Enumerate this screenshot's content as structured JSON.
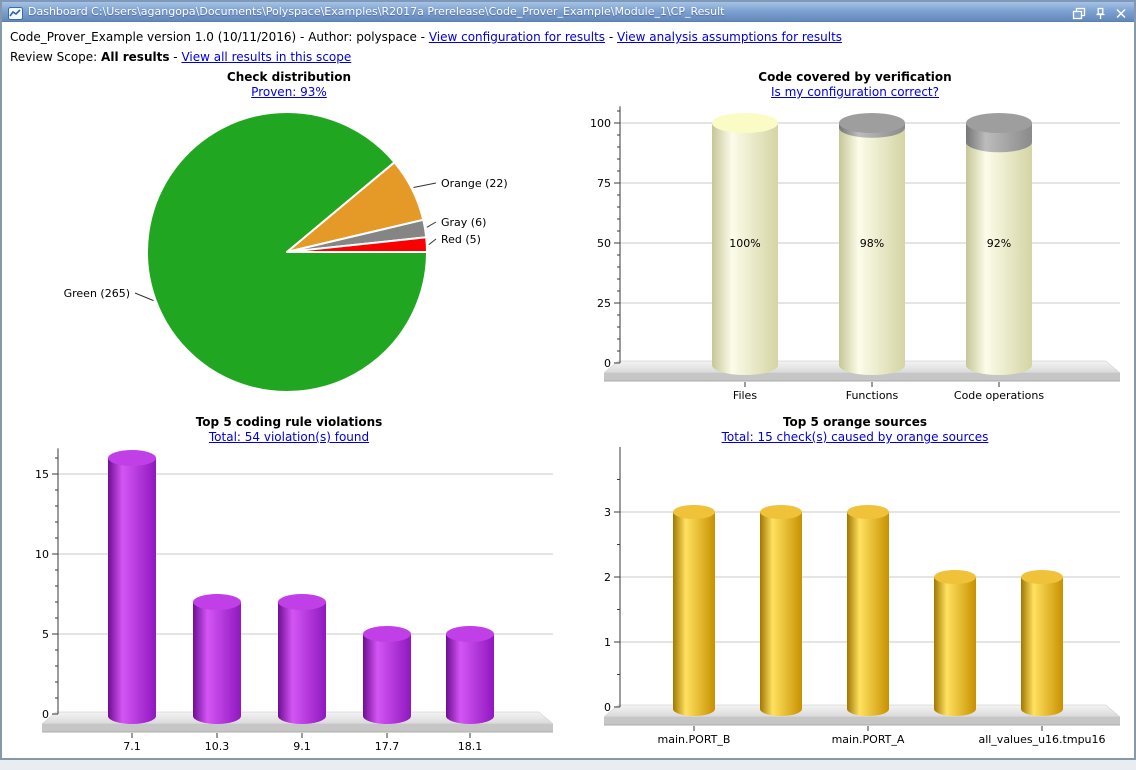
{
  "window": {
    "title": "Dashboard C:\\Users\\agangopa\\Documents\\Polyspace\\Examples\\R2017a Prerelease\\Code_Prover_Example\\Module_1\\CP_Result",
    "icons": [
      "line-chart",
      "restore",
      "pin",
      "close"
    ],
    "titlebar_color": "#7FA3D2",
    "link_color": "#0000DD"
  },
  "header": {
    "line1": {
      "prefix": "Code_Prover_Example version 1.0 (10/11/2016) - Author: polyspace - ",
      "link1": "View configuration for results",
      "sep": " - ",
      "link2": "View analysis assumptions for results"
    },
    "line2": {
      "label": "Review Scope: ",
      "scope": "All results",
      "sep": " - ",
      "link": "View all results in this scope"
    }
  },
  "chart_data": [
    {
      "type": "pie",
      "title": "Check distribution",
      "link": "Proven: 93%",
      "slices": [
        {
          "label": "Green (265)",
          "value": 265,
          "color": "#21A621"
        },
        {
          "label": "Orange (22)",
          "value": 22,
          "color": "#E59A28"
        },
        {
          "label": "Gray (6)",
          "value": 6,
          "color": "#858585"
        },
        {
          "label": "Red (5)",
          "value": 5,
          "color": "#FA0000"
        }
      ]
    },
    {
      "type": "bar",
      "title": "Code covered by verification",
      "link": "Is my configuration correct?",
      "categories": [
        "Files",
        "Functions",
        "Code operations"
      ],
      "values": [
        100,
        98,
        92
      ],
      "value_labels": [
        "100%",
        "98%",
        "92%"
      ],
      "ylim": [
        0,
        107
      ],
      "yticks": [
        0,
        25,
        50,
        75,
        100
      ],
      "bar_color": "#E6E6B8",
      "uncovered_color": "#8A8A8A",
      "grid": true
    },
    {
      "type": "bar",
      "title": "Top 5 coding rule violations",
      "link": "Total: 54 violation(s) found",
      "categories": [
        "7.1",
        "10.3",
        "9.1",
        "17.7",
        "18.1"
      ],
      "values": [
        16,
        7,
        7,
        5,
        5
      ],
      "ylim": [
        0,
        16.6
      ],
      "yticks": [
        0,
        5,
        10,
        15
      ],
      "bar_color": "#A825D6",
      "grid": true
    },
    {
      "type": "bar",
      "title": "Top 5 orange sources",
      "link": "Total: 15 check(s) caused by orange sources",
      "categories": [
        "main.PORT_B",
        "",
        "main.PORT_A",
        "",
        "all_values_u16.tmpu16"
      ],
      "values": [
        3,
        3,
        3,
        2,
        2
      ],
      "ylim": [
        0,
        4
      ],
      "yticks": [
        0,
        1,
        2,
        3
      ],
      "bar_color": "#E8B00A",
      "grid": true
    }
  ]
}
